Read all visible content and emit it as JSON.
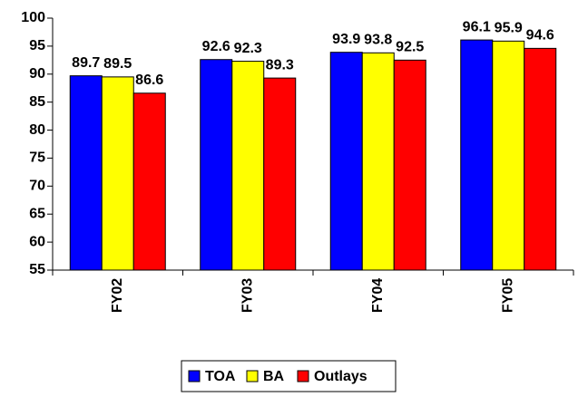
{
  "chart_data": {
    "type": "bar",
    "categories": [
      "FY02",
      "FY03",
      "FY04",
      "FY05"
    ],
    "series": [
      {
        "name": "TOA",
        "color": "#0000ff",
        "values": [
          89.7,
          92.6,
          93.9,
          96.1
        ]
      },
      {
        "name": "BA",
        "color": "#ffff00",
        "values": [
          89.5,
          92.3,
          93.8,
          95.9
        ]
      },
      {
        "name": "Outlays",
        "color": "#ff0000",
        "values": [
          86.6,
          89.3,
          92.5,
          94.6
        ]
      }
    ],
    "ylim": [
      55,
      100
    ],
    "yticks": [
      55,
      60,
      65,
      70,
      75,
      80,
      85,
      90,
      95,
      100
    ],
    "grid": false,
    "legend": "bottom"
  }
}
